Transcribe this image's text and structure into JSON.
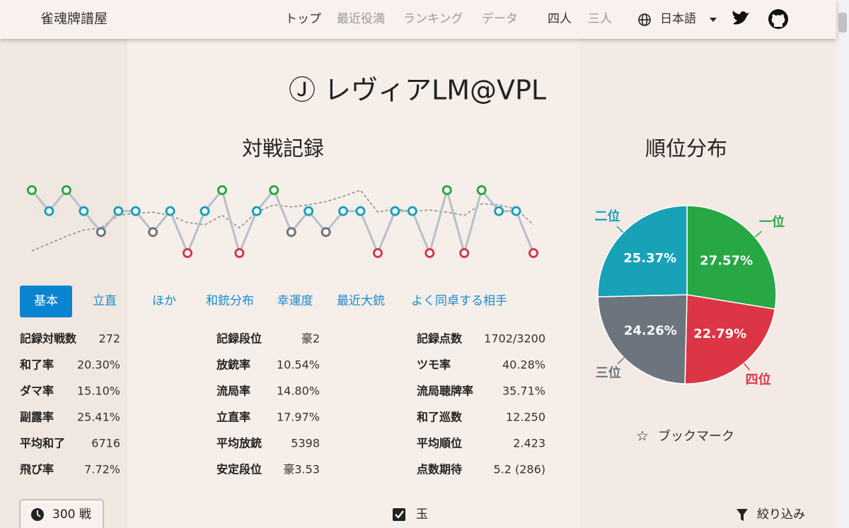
{
  "nav": {
    "brand": "雀魂牌譜屋",
    "links": [
      "トップ",
      "最近役満",
      "ランキング",
      "データ"
    ],
    "modes": [
      "四人",
      "三人"
    ],
    "language": "日本語"
  },
  "player_name": "Ⓙ レヴィアLM@VPL",
  "chart_data": [
    {
      "type": "line",
      "title": "対戦記録",
      "ylim": [
        1,
        4
      ],
      "rank_colors": [
        "#28a745",
        "#17a2b8",
        "#6c757d",
        "#dc3545"
      ],
      "series": [
        {
          "color": "#b6c0ca",
          "values": [
            1,
            2,
            1,
            2,
            3,
            2,
            2,
            3,
            2,
            4,
            2,
            1,
            4,
            2,
            1,
            3,
            2,
            3,
            2,
            2,
            4,
            2,
            2,
            4,
            1,
            4,
            1,
            2,
            2,
            4
          ]
        },
        {
          "color": "#8a8a8a",
          "dashed": true,
          "values": [
            3.9,
            3.55,
            3.2,
            2.9,
            2.8,
            2.2,
            2.1,
            2.05,
            2.2,
            2.55,
            2.65,
            2.2,
            2.8,
            2.05,
            1.7,
            1.8,
            1.7,
            1.55,
            1.3,
            1.0,
            2.05,
            1.9,
            2.0,
            1.95,
            2.05,
            2.2,
            1.65,
            1.7,
            1.9,
            2.65
          ]
        }
      ]
    },
    {
      "type": "pie",
      "title": "順位分布",
      "categories": [
        "一位",
        "四位",
        "三位",
        "二位"
      ],
      "values": [
        27.57,
        22.79,
        24.26,
        25.37
      ],
      "value_labels": [
        "27.57%",
        "22.79%",
        "24.26%",
        "25.37%"
      ],
      "colors": [
        "#28a745",
        "#dc3545",
        "#6c757d",
        "#17a2b8"
      ]
    }
  ],
  "stats": {
    "tabs": [
      "基本",
      "立直",
      "ほか",
      "和銃分布",
      "幸運度",
      "最近大銃",
      "よく同卓する相手"
    ],
    "active_tab": 0,
    "columns": [
      [
        {
          "label": "記録対戦数",
          "value": "272"
        },
        {
          "label": "和了率",
          "value": "20.30%"
        },
        {
          "label": "ダマ率",
          "value": "15.10%"
        },
        {
          "label": "副露率",
          "value": "25.41%"
        },
        {
          "label": "平均和了",
          "value": "6716"
        },
        {
          "label": "飛び率",
          "value": "7.72%"
        }
      ],
      [
        {
          "label": "記録段位",
          "value": "豪2"
        },
        {
          "label": "放銃率",
          "value": "10.54%"
        },
        {
          "label": "流局率",
          "value": "14.80%"
        },
        {
          "label": "立直率",
          "value": "17.97%"
        },
        {
          "label": "平均放銃",
          "value": "5398"
        },
        {
          "label": "安定段位",
          "value": "豪3.53"
        }
      ],
      [
        {
          "label": "記録点数",
          "value": "1702/3200"
        },
        {
          "label": "ツモ率",
          "value": "40.28%"
        },
        {
          "label": "流局聴牌率",
          "value": "35.71%"
        },
        {
          "label": "和了巡数",
          "value": "12.250"
        },
        {
          "label": "平均順位",
          "value": "2.423"
        },
        {
          "label": "点数期待",
          "value": "5.2 (286)"
        }
      ]
    ]
  },
  "bookmark": "ブックマーク",
  "footer": {
    "games": "300 戦",
    "jade": "玉",
    "filter": "絞り込み"
  }
}
